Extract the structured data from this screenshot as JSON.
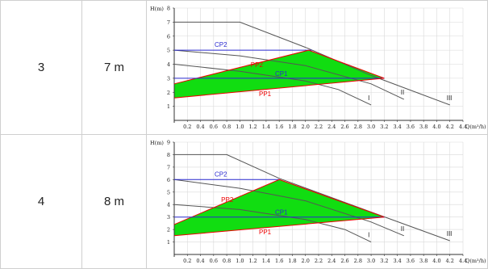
{
  "rows": [
    {
      "index": "3",
      "head": "7 m",
      "chart_data": {
        "type": "line",
        "ylabel": "H(m)",
        "xlabel": "Q(m³/h)",
        "xlim": [
          0,
          4.4
        ],
        "ylim": [
          0,
          8
        ],
        "x_ticks": [
          "0.2",
          "0.4",
          "0.6",
          "0.8",
          "1.0",
          "1.2",
          "1.4",
          "1.6",
          "1.8",
          "2.0",
          "2.2",
          "2.4",
          "2.6",
          "2.8",
          "3.0",
          "3.2",
          "3.4",
          "3.6",
          "3.8",
          "4.0",
          "4.2",
          "4.4"
        ],
        "y_ticks": [
          "1",
          "2",
          "3",
          "4",
          "5",
          "6",
          "7",
          "8"
        ],
        "grid": true,
        "series": [
          {
            "name": "III",
            "color": "#555555",
            "x": [
              0,
              1.0,
              2.0,
              3.0,
              4.2
            ],
            "y": [
              7,
              7,
              5.2,
              3.2,
              1.1
            ]
          },
          {
            "name": "II",
            "color": "#555555",
            "x": [
              0,
              1.0,
              2.0,
              3.0,
              3.5
            ],
            "y": [
              5.0,
              4.6,
              3.9,
              2.6,
              1.5
            ]
          },
          {
            "name": "I",
            "color": "#555555",
            "x": [
              0,
              1.0,
              2.0,
              2.5,
              3.0
            ],
            "y": [
              4.0,
              3.5,
              2.8,
              2.2,
              1.1
            ]
          },
          {
            "name": "CP2",
            "color": "#2a2ad0",
            "x": [
              0,
              2.1
            ],
            "y": [
              5.0,
              5.0
            ]
          },
          {
            "name": "PP2",
            "color": "#ee0000",
            "x": [
              0,
              2.05,
              3.2
            ],
            "y": [
              2.6,
              5.0,
              3.0
            ]
          },
          {
            "name": "CP1",
            "color": "#2a2ad0",
            "x": [
              0,
              3.2
            ],
            "y": [
              3.0,
              3.0
            ]
          },
          {
            "name": "PP1",
            "color": "#ee0000",
            "x": [
              0,
              3.2
            ],
            "y": [
              1.6,
              3.0
            ]
          }
        ],
        "area": {
          "color": "#11dd11",
          "x": [
            0,
            2.05,
            3.2,
            0
          ],
          "y": [
            2.6,
            5.0,
            3.0,
            1.6
          ]
        }
      }
    },
    {
      "index": "4",
      "head": "8 m",
      "chart_data": {
        "type": "line",
        "ylabel": "H(m)",
        "xlabel": "Q(m³/h)",
        "xlim": [
          0,
          4.4
        ],
        "ylim": [
          0,
          9
        ],
        "x_ticks": [
          "0.2",
          "0.4",
          "0.6",
          "0.8",
          "1.0",
          "1.2",
          "1.4",
          "1.6",
          "1.8",
          "2.0",
          "2.2",
          "2.4",
          "2.6",
          "2.8",
          "3.0",
          "3.2",
          "3.4",
          "3.6",
          "3.8",
          "4.0",
          "4.2",
          "4.4"
        ],
        "y_ticks": [
          "1",
          "2",
          "3",
          "4",
          "5",
          "6",
          "7",
          "8",
          "9"
        ],
        "grid": true,
        "series": [
          {
            "name": "III",
            "color": "#555555",
            "x": [
              0,
              0.8,
              1.6,
              3.0,
              4.2
            ],
            "y": [
              8,
              8,
              6.1,
              3.4,
              1.1
            ]
          },
          {
            "name": "II",
            "color": "#555555",
            "x": [
              0,
              1.0,
              2.0,
              3.0,
              3.5
            ],
            "y": [
              6.0,
              5.3,
              4.3,
              2.6,
              1.5
            ]
          },
          {
            "name": "I",
            "color": "#555555",
            "x": [
              0,
              1.0,
              2.0,
              2.6,
              3.0
            ],
            "y": [
              4.0,
              3.6,
              2.8,
              2.0,
              1.0
            ]
          },
          {
            "name": "CP2",
            "color": "#2a2ad0",
            "x": [
              0,
              1.6
            ],
            "y": [
              6.0,
              6.0
            ]
          },
          {
            "name": "PP2",
            "color": "#ee0000",
            "x": [
              0,
              1.6,
              3.2
            ],
            "y": [
              2.4,
              6.0,
              3.0
            ]
          },
          {
            "name": "CP1",
            "color": "#2a2ad0",
            "x": [
              0,
              3.2
            ],
            "y": [
              3.0,
              3.0
            ]
          },
          {
            "name": "PP1",
            "color": "#ee0000",
            "x": [
              0,
              3.2
            ],
            "y": [
              1.5,
              3.0
            ]
          }
        ],
        "area": {
          "color": "#11dd11",
          "x": [
            0,
            1.6,
            3.2,
            0
          ],
          "y": [
            2.4,
            6.0,
            3.0,
            1.5
          ]
        }
      }
    }
  ]
}
